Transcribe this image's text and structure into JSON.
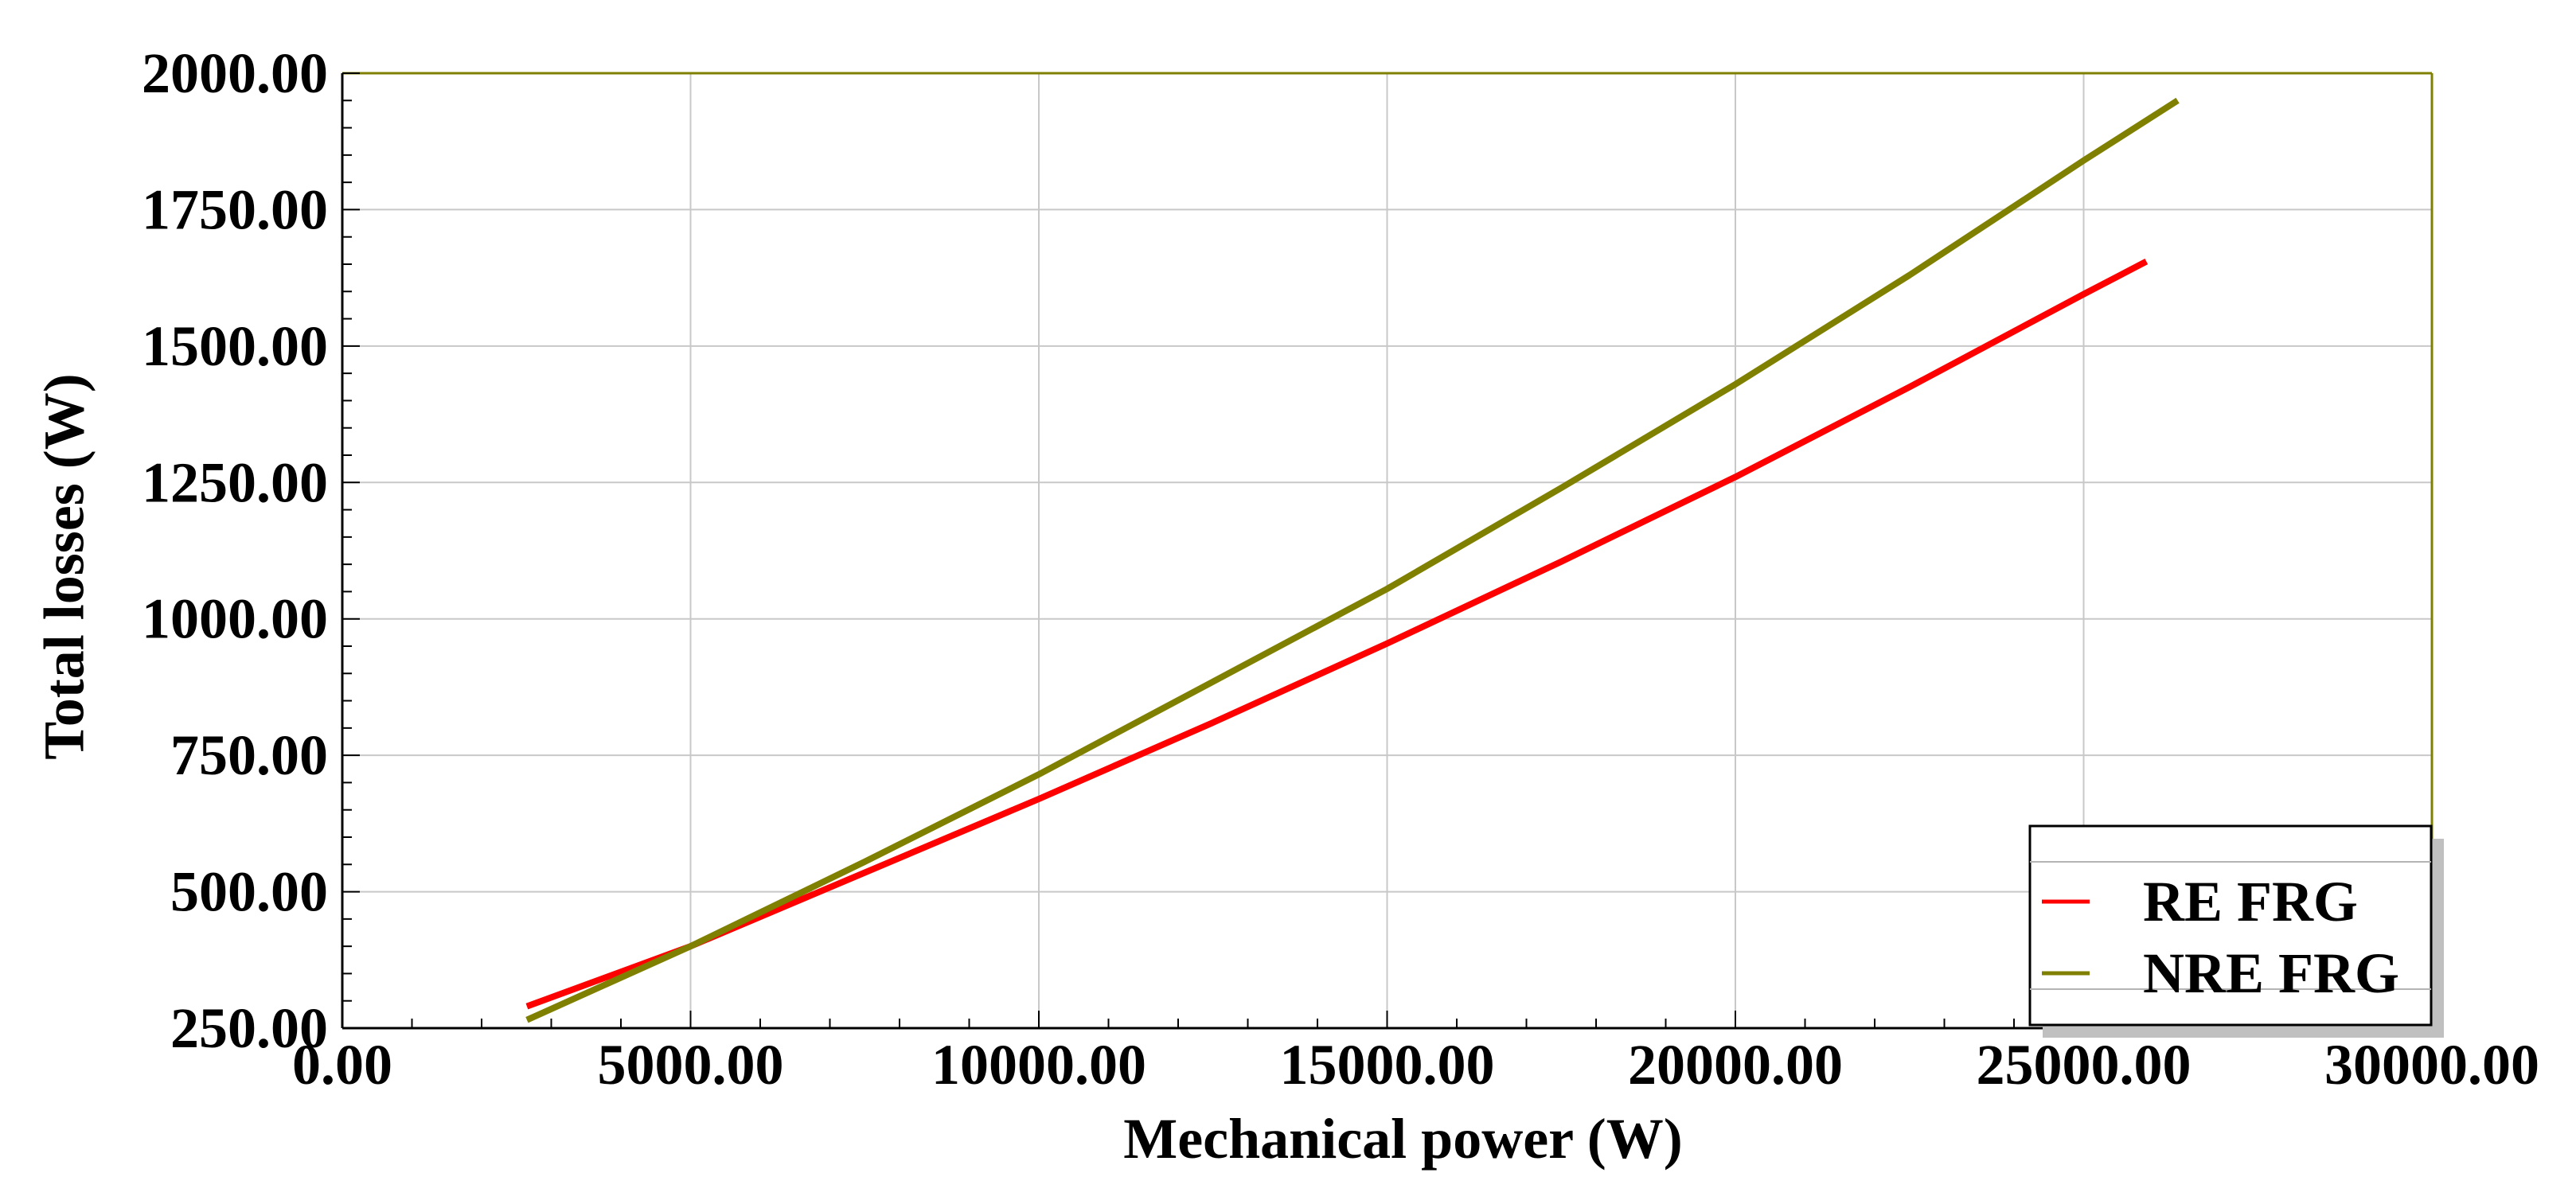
{
  "chart_data": {
    "type": "line",
    "xlabel": "Mechanical power (W)",
    "ylabel": "Total losses (W)",
    "xlim": [
      0,
      30000
    ],
    "ylim": [
      250,
      2000
    ],
    "x_ticks": [
      "0.00",
      "5000.00",
      "10000.00",
      "15000.00",
      "20000.00",
      "25000.00",
      "30000.00"
    ],
    "y_ticks": [
      "250.00",
      "500.00",
      "750.00",
      "1000.00",
      "1250.00",
      "1500.00",
      "1750.00",
      "2000.00"
    ],
    "x_tick_values": [
      0,
      5000,
      10000,
      15000,
      20000,
      25000,
      30000
    ],
    "y_tick_values": [
      250,
      500,
      750,
      1000,
      1250,
      1500,
      1750,
      2000
    ],
    "grid": true,
    "legend_position": "bottom-right",
    "series": [
      {
        "name": "RE FRG",
        "color": "#ff0000",
        "x": [
          2650,
          5000,
          7500,
          10000,
          12500,
          15000,
          17500,
          20000,
          22500,
          25000,
          25900
        ],
        "y": [
          290,
          400,
          535,
          670,
          810,
          955,
          1105,
          1260,
          1425,
          1595,
          1655
        ]
      },
      {
        "name": "NRE FRG",
        "color": "#808000",
        "x": [
          2650,
          5000,
          7500,
          10000,
          12500,
          15000,
          17500,
          20000,
          22500,
          25000,
          26350
        ],
        "y": [
          265,
          400,
          555,
          715,
          885,
          1055,
          1240,
          1430,
          1630,
          1840,
          1950
        ]
      }
    ]
  }
}
